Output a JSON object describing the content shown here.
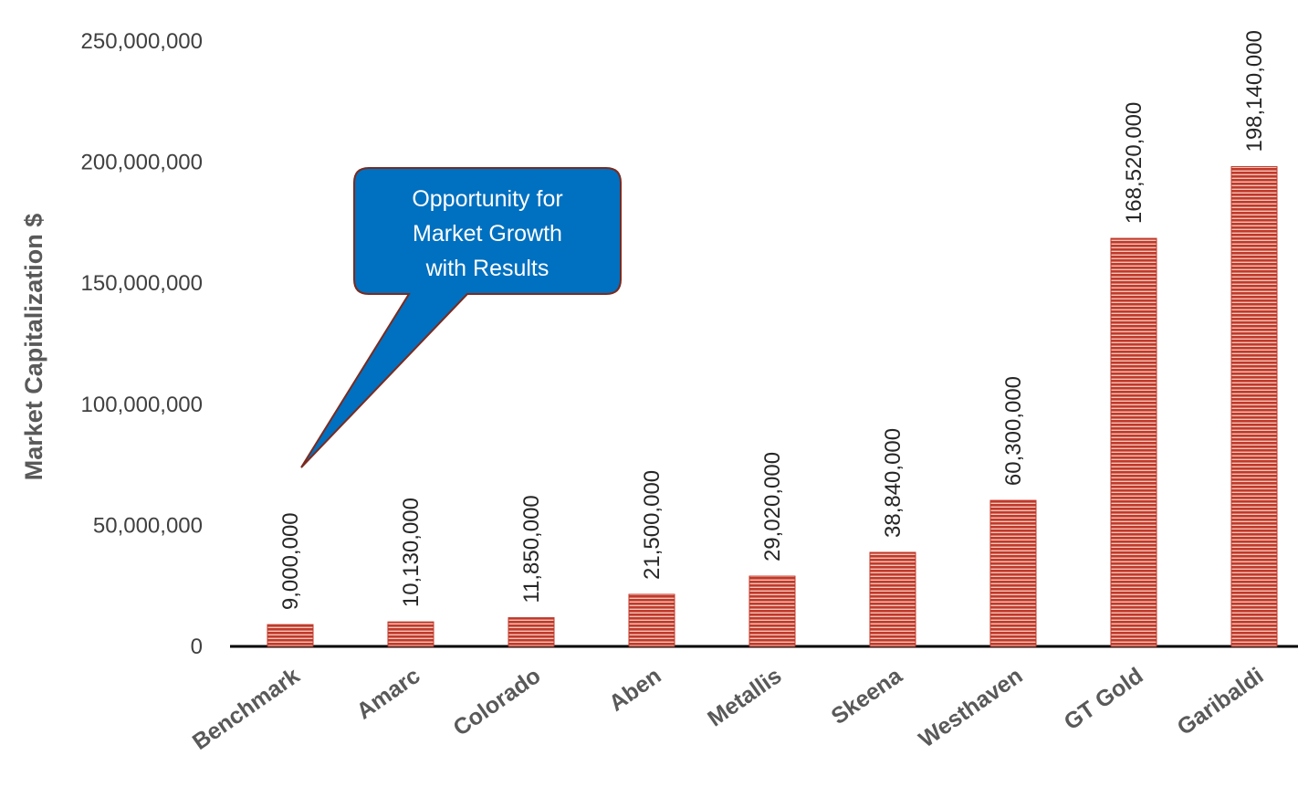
{
  "chart_data": {
    "type": "bar",
    "title": "",
    "xlabel": "",
    "ylabel": "Market Capitalization $",
    "categories": [
      "Benchmark",
      "Amarc",
      "Colorado",
      "Aben",
      "Metallis",
      "Skeena",
      "Westhaven",
      "GT Gold",
      "Garibaldi"
    ],
    "values": [
      9000000,
      10130000,
      11850000,
      21500000,
      29020000,
      38840000,
      60300000,
      168520000,
      198140000
    ],
    "data_labels": [
      "9,000,000",
      "10,130,000",
      "11,850,000",
      "21,500,000",
      "29,020,000",
      "38,840,000",
      "60,300,000",
      "168,520,000",
      "198,140,000"
    ],
    "ylim": [
      0,
      250000000
    ],
    "yticks": [
      0,
      50000000,
      100000000,
      150000000,
      200000000,
      250000000
    ],
    "ytick_labels": [
      "0",
      "50,000,000",
      "100,000,000",
      "150,000,000",
      "200,000,000",
      "250,000,000"
    ],
    "grid": false,
    "legend": "none",
    "bar_color": "#c0392b",
    "bar_stripe_color": "#f4c6b8",
    "annotation": {
      "text_lines": [
        "Opportunity for",
        "Market Growth",
        "with Results"
      ],
      "points_to": "Benchmark",
      "fill": "#0070c0",
      "border": "#7b2a1e"
    }
  }
}
